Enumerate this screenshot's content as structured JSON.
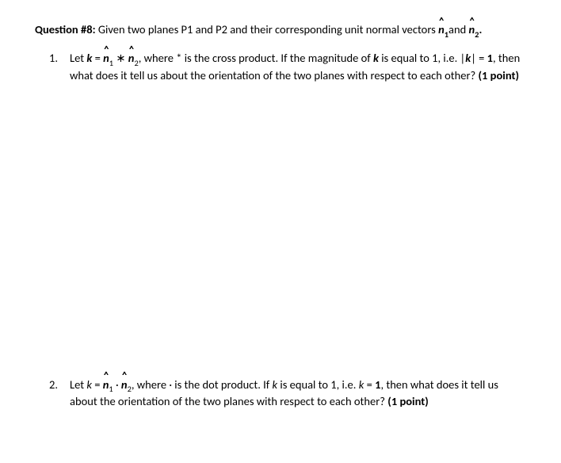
{
  "header": {
    "label": "Question #8:",
    "text_before_n1": " Given two planes P1 and P2 and their corresponding unit normal vectors ",
    "n1": "n",
    "n1_sub": "1",
    "and": "and ",
    "n2": "n",
    "n2_sub": "2",
    "period": "."
  },
  "q1": {
    "num": "1.",
    "t1": "Let ",
    "k": "k",
    "t2": " = ",
    "n1": "n",
    "n1_sub": "1",
    "t3": " ∗ ",
    "n2": "n",
    "n2_sub": "2",
    "t4": ", where * is the cross product. If the magnitude of ",
    "k2": "k",
    "t5": " is equal to 1, i.e. ",
    "mag_open": "|",
    "k3": "k",
    "mag_close": "|",
    "t6": " = ",
    "one1": "1",
    "t7": ", then what does it tell us about the orientation of the two planes with respect to each other? ",
    "points": "(1 point)"
  },
  "q2": {
    "num": "2.",
    "t1": "Let ",
    "k": "k",
    "t2": " = ",
    "n1": "n",
    "n1_sub": "1",
    "t3": " · ",
    "n2": "n",
    "n2_sub": "2",
    "t4": ", where · is the dot product. If ",
    "k2": "k",
    "t5": " is equal to 1, i.e. ",
    "k3": "k",
    "t6": " = ",
    "one1": "1",
    "t7": ", then what does it tell us about the orientation of the two planes with respect to each other? ",
    "points": "(1 point)"
  },
  "hat_glyph": "^"
}
